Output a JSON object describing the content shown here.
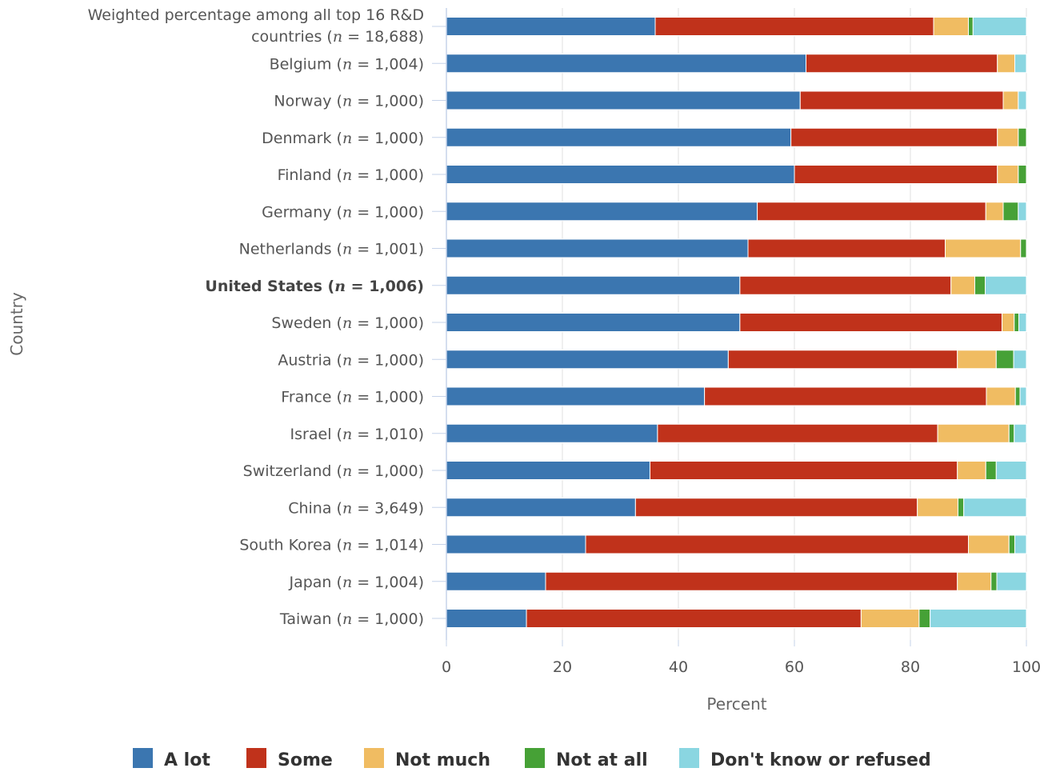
{
  "chart_data": {
    "type": "bar",
    "orientation": "horizontal",
    "stacked": true,
    "xlabel": "Percent",
    "ylabel": "Country",
    "xlim": [
      0,
      100
    ],
    "xticks": [
      0,
      20,
      40,
      60,
      80,
      100
    ],
    "grid": true,
    "legend_position": "bottom",
    "categories": [
      {
        "name": "Weighted percentage among all top 16 R&D countries",
        "n": "18,688",
        "bold": false
      },
      {
        "name": "Belgium",
        "n": "1,004",
        "bold": false
      },
      {
        "name": "Norway",
        "n": "1,000",
        "bold": false
      },
      {
        "name": "Denmark",
        "n": "1,000",
        "bold": false
      },
      {
        "name": "Finland",
        "n": "1,000",
        "bold": false
      },
      {
        "name": "Germany",
        "n": "1,000",
        "bold": false
      },
      {
        "name": "Netherlands",
        "n": "1,001",
        "bold": false
      },
      {
        "name": "United States",
        "n": "1,006",
        "bold": true
      },
      {
        "name": "Sweden",
        "n": "1,000",
        "bold": false
      },
      {
        "name": "Austria",
        "n": "1,000",
        "bold": false
      },
      {
        "name": "France",
        "n": "1,000",
        "bold": false
      },
      {
        "name": "Israel",
        "n": "1,010",
        "bold": false
      },
      {
        "name": "Switzerland",
        "n": "1,000",
        "bold": false
      },
      {
        "name": "China",
        "n": "3,649",
        "bold": false
      },
      {
        "name": "South Korea",
        "n": "1,014",
        "bold": false
      },
      {
        "name": "Japan",
        "n": "1,004",
        "bold": false
      },
      {
        "name": "Taiwan",
        "n": "1,000",
        "bold": false
      }
    ],
    "series": [
      {
        "name": "A lot",
        "color": "#3b76b0",
        "values": [
          36,
          62,
          61,
          59.4,
          60,
          53.6,
          52,
          50.6,
          50.6,
          48.6,
          44.5,
          36.4,
          35.1,
          32.6,
          24,
          17.1,
          13.8
        ]
      },
      {
        "name": "Some",
        "color": "#c0321b",
        "values": [
          48,
          33,
          35,
          35.6,
          35,
          39.4,
          34,
          36.4,
          45.2,
          39.5,
          48.6,
          48.3,
          53,
          48.6,
          66,
          71,
          57.7
        ]
      },
      {
        "name": "Not much",
        "color": "#f0bc62",
        "values": [
          6,
          3,
          2.6,
          3.6,
          3.6,
          3,
          13,
          4.1,
          2.1,
          6.7,
          5,
          12.3,
          4.9,
          7,
          7,
          5.8,
          10
        ]
      },
      {
        "name": "Not at all",
        "color": "#46a136",
        "values": [
          0.8,
          0,
          0,
          1.4,
          1.4,
          2.6,
          1,
          1.8,
          0.8,
          3,
          0.8,
          0.9,
          1.8,
          1,
          1,
          1,
          1.9
        ]
      },
      {
        "name": "Don't know or refused",
        "color": "#8ad6e1",
        "values": [
          9.2,
          2,
          1.4,
          0,
          0,
          1.4,
          0,
          7.1,
          1.3,
          2.2,
          1.1,
          2.1,
          5.2,
          10.8,
          2,
          5.1,
          16.6
        ]
      }
    ]
  }
}
